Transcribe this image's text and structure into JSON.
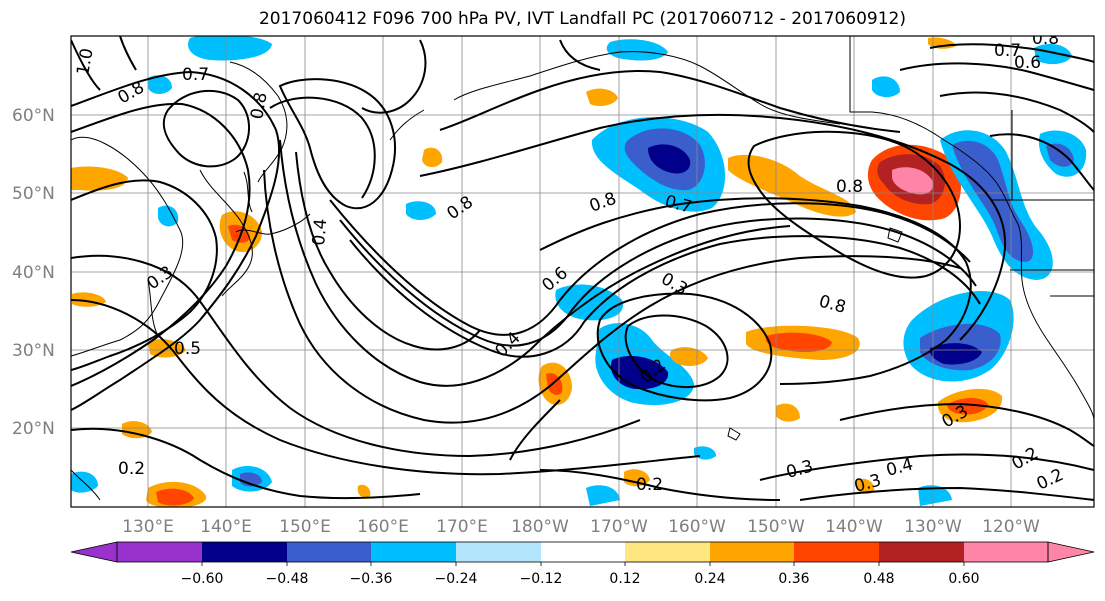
{
  "title": "2017060412 F096 700 hPa PV, IVT Landfall PC (2017060712 - 2017060912)",
  "lat_labels": [
    "60°N",
    "50°N",
    "40°N",
    "30°N",
    "20°N"
  ],
  "lon_labels": [
    "130°E",
    "140°E",
    "150°E",
    "160°E",
    "170°E",
    "180°W",
    "170°W",
    "160°W",
    "150°W",
    "140°W",
    "130°W",
    "120°W"
  ],
  "colorbar": {
    "ticks": [
      "−0.60",
      "−0.48",
      "−0.36",
      "−0.24",
      "−0.12",
      "0.12",
      "0.24",
      "0.36",
      "0.48",
      "0.60"
    ],
    "colors": [
      "#9932cc",
      "#00008b",
      "#3a5fcd",
      "#00bfff",
      "#b3e5fc",
      "#ffffff",
      "#ffe680",
      "#ffa500",
      "#ff4500",
      "#b22222",
      "#ff85a8"
    ]
  },
  "contour_labels": [
    "0.7",
    "0.8",
    "1.0",
    "0.8",
    "0.8",
    "0.8",
    "0.4",
    "0.3",
    "0.5",
    "0.8",
    "0.7",
    "0.6",
    "0.3",
    "0.2",
    "0.4",
    "0.8",
    "0.3",
    "0.3",
    "0.4",
    "0.2",
    "0.2",
    "0.3",
    "0.2",
    "0.2",
    "0.7",
    "0.6",
    "0.8"
  ]
}
